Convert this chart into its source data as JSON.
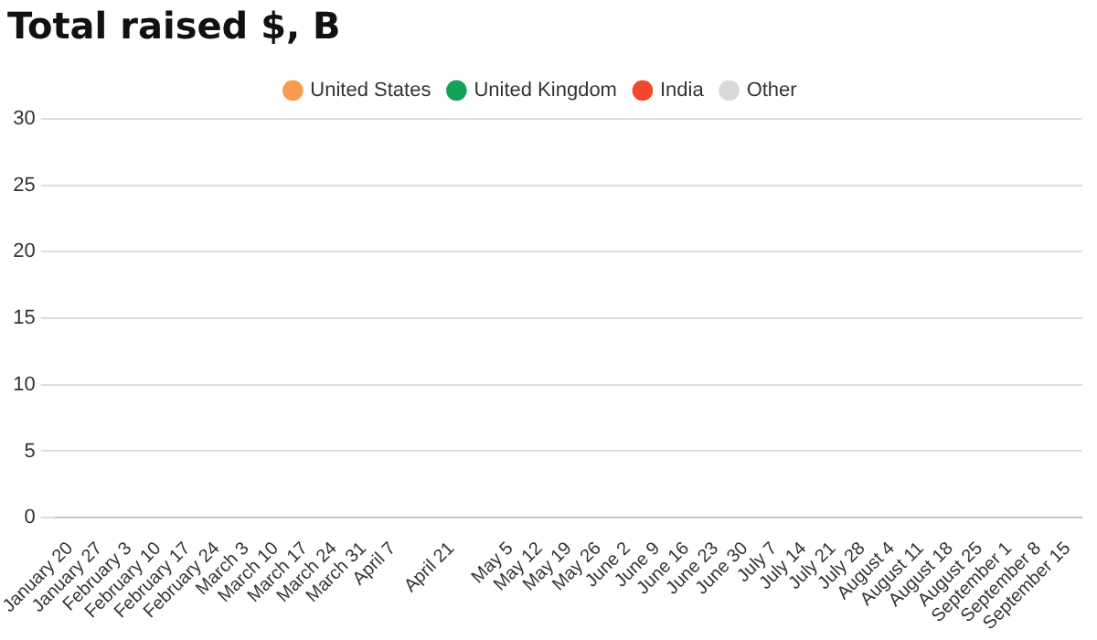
{
  "chart_data": {
    "type": "bar",
    "title": "Total raised $, B",
    "categories": [
      "January 20",
      "January 27",
      "February 3",
      "February 10",
      "February 17",
      "February 24",
      "March 3",
      "March 10",
      "March 17",
      "March 24",
      "March 31",
      "April 7",
      null,
      "April 21",
      null,
      "May 5",
      "May 12",
      "May 19",
      "May 26",
      "June 2",
      "June 9",
      "June 16",
      "June 23",
      "June 30",
      "July 7",
      "July 14",
      "July 21",
      "July 28",
      "August 4",
      "August 11",
      "August 18",
      "August 25",
      "September 1",
      "September 8",
      "September 15"
    ],
    "series": [
      {
        "name": "United States",
        "color": "#f99a4c",
        "values": [
          0,
          0,
          0,
          0,
          0,
          0,
          0,
          0,
          0,
          0,
          0,
          0,
          0,
          0,
          0,
          0,
          0,
          0,
          0,
          0,
          0,
          0,
          0,
          0,
          0,
          0,
          0,
          0,
          0,
          0,
          0,
          0,
          0,
          0,
          0
        ]
      },
      {
        "name": "United Kingdom",
        "color": "#12a25a",
        "values": [
          0,
          0,
          0,
          0,
          0,
          0,
          0,
          0,
          0,
          0,
          0,
          0,
          0,
          0,
          0,
          0,
          0,
          0,
          0,
          0,
          0,
          0,
          0,
          0,
          0,
          0,
          0,
          0,
          0,
          0,
          0,
          0,
          0,
          0,
          0
        ]
      },
      {
        "name": "India",
        "color": "#f2462d",
        "values": [
          0,
          0,
          0,
          0,
          0,
          0,
          0,
          0,
          0,
          0,
          0,
          0,
          0,
          0,
          0,
          0,
          0,
          0,
          0,
          0,
          0,
          0,
          0,
          0,
          0,
          0,
          0,
          0,
          0,
          0,
          0,
          0,
          0,
          0,
          0
        ]
      },
      {
        "name": "Other",
        "color": "#d9d9d9",
        "values": [
          0,
          0,
          0,
          0,
          0,
          0,
          0,
          0,
          0,
          0,
          0,
          0,
          0,
          0,
          0,
          0,
          0,
          0,
          0,
          0,
          0,
          0,
          0,
          0,
          0,
          0,
          0,
          0,
          0,
          0,
          0,
          0,
          0,
          0,
          0
        ]
      }
    ],
    "ylim": [
      0,
      30
    ],
    "yticks": [
      0,
      5,
      10,
      15,
      20,
      25,
      30
    ],
    "grid": "y",
    "legend": "top"
  }
}
